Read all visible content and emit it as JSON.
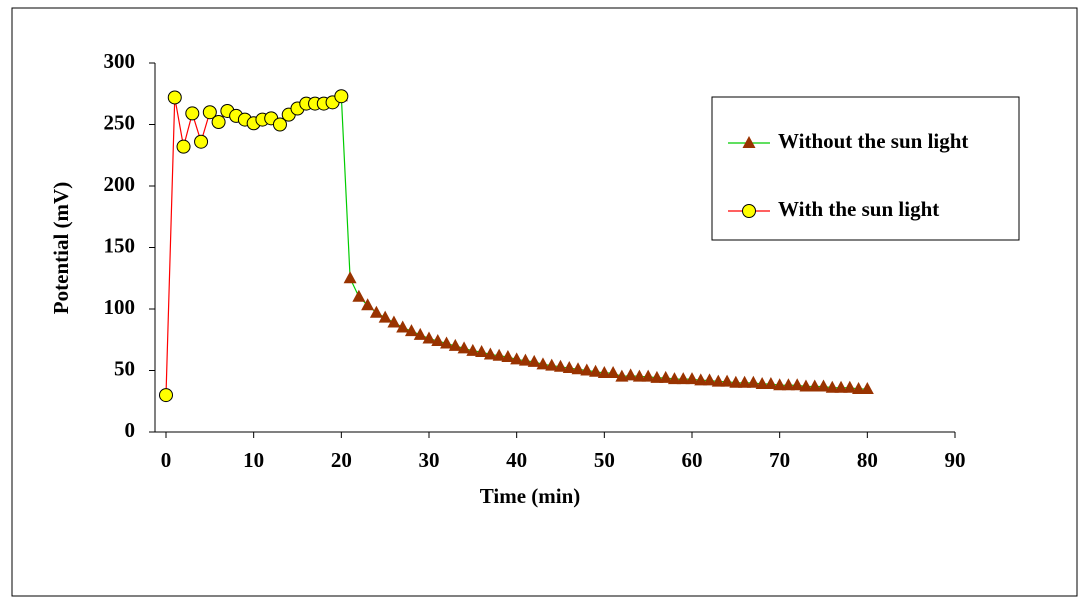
{
  "chart_data": {
    "type": "line",
    "xlabel": "Time (min)",
    "ylabel": "Potential (mV)",
    "xlim": [
      0,
      90
    ],
    "xticks": [
      0,
      10,
      20,
      30,
      40,
      50,
      60,
      70,
      80,
      90
    ],
    "ylim": [
      0,
      300
    ],
    "yticks": [
      0,
      50,
      100,
      150,
      200,
      250,
      300
    ],
    "grid": false,
    "legend": "upper right",
    "series": [
      {
        "name": "Without the sun light",
        "color": "#00cc00",
        "marker": "triangle",
        "marker_color": "#993300",
        "x": [
          20,
          21,
          22,
          23,
          24,
          25,
          26,
          27,
          28,
          29,
          30,
          31,
          32,
          33,
          34,
          35,
          36,
          37,
          38,
          39,
          40,
          41,
          42,
          43,
          44,
          45,
          46,
          47,
          48,
          49,
          50,
          51,
          52,
          53,
          54,
          55,
          56,
          57,
          58,
          59,
          60,
          61,
          62,
          63,
          64,
          65,
          66,
          67,
          68,
          69,
          70,
          71,
          72,
          73,
          74,
          75,
          76,
          77,
          78,
          79,
          80
        ],
        "values": [
          273,
          125,
          110,
          103,
          97,
          93,
          89,
          85,
          82,
          79,
          76,
          74,
          72,
          70,
          68,
          66,
          65,
          63,
          62,
          61,
          59,
          58,
          57,
          55,
          54,
          53,
          52,
          51,
          50,
          49,
          48,
          48,
          45,
          46,
          45,
          45,
          44,
          44,
          43,
          43,
          43,
          42,
          42,
          41,
          41,
          40,
          40,
          40,
          39,
          39,
          38,
          38,
          38,
          37,
          37,
          37,
          36,
          36,
          36,
          35,
          35
        ]
      },
      {
        "name": "With the sun light",
        "color": "#ff0000",
        "marker": "circle",
        "marker_color": "#ffff00",
        "x": [
          0,
          1,
          2,
          3,
          4,
          5,
          6,
          7,
          8,
          9,
          10,
          11,
          12,
          13,
          14,
          15,
          16,
          17,
          18,
          19,
          20
        ],
        "values": [
          30,
          272,
          232,
          259,
          236,
          260,
          252,
          261,
          257,
          254,
          251,
          254,
          255,
          250,
          258,
          263,
          267,
          267,
          267,
          268,
          273
        ]
      }
    ]
  }
}
